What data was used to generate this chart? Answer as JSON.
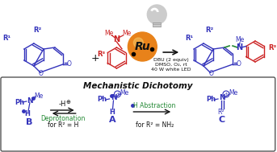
{
  "bg_color": "#ffffff",
  "blue": "#3333bb",
  "red": "#cc2222",
  "green": "#228833",
  "orange": "#e8821a",
  "black": "#111111",
  "mechanistic_title": "Mechanistic Dichotomy",
  "condition_line1": "DBU (2 equiv)",
  "condition_line2": "DMSO, O₂, rt",
  "condition_line3": "40 W white LED",
  "figsize": [
    3.43,
    1.89
  ],
  "dpi": 100
}
